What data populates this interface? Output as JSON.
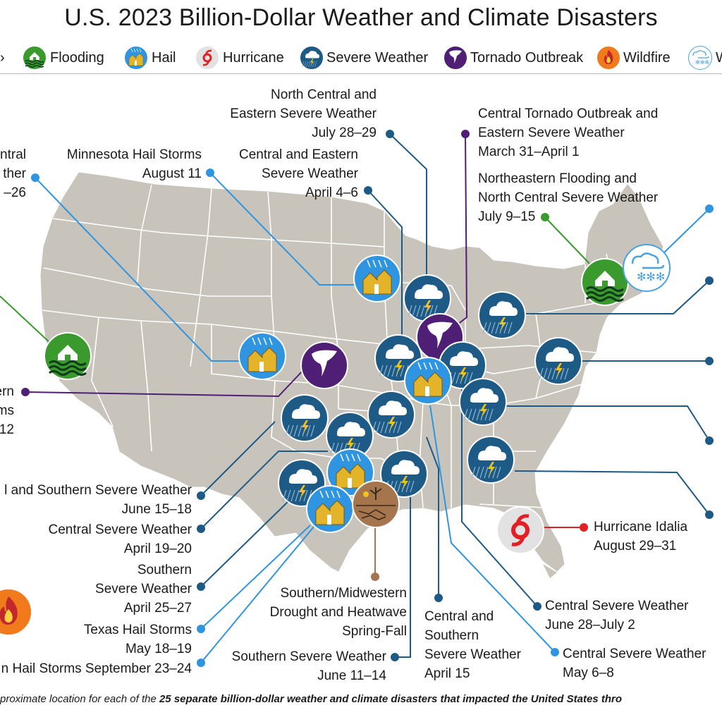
{
  "title": "U.S. 2023 Billion-Dollar Weather and Climate Disasters",
  "legend": [
    {
      "icon": "flooding-icon",
      "label": "Flooding",
      "color": "#3a9a2e"
    },
    {
      "icon": "hail-icon",
      "label": "Hail",
      "color": "#2f95e0"
    },
    {
      "icon": "hurricane-icon",
      "label": "Hurricane",
      "color": "#e0e0e0"
    },
    {
      "icon": "severe-weather-icon",
      "label": "Severe Weather",
      "color": "#1d5a86"
    },
    {
      "icon": "tornado-outbreak-icon",
      "label": "Tornado Outbreak",
      "color": "#4e1f74"
    },
    {
      "icon": "wildfire-icon",
      "label": "Wildfire",
      "color": "#f07a1c"
    },
    {
      "icon": "winter-storm-icon",
      "label": "W",
      "color": "#ffffff"
    }
  ],
  "colors": {
    "land": "#c8c4bb",
    "border": "#ffffff",
    "flooding": "#3a9a2e",
    "hail": "#2f95e0",
    "severe": "#1d5a86",
    "tornado": "#4e1f74",
    "hurricane_line": "#e31e24",
    "drought": "#a5754d"
  },
  "events": [
    {
      "type": "severe",
      "lines": [
        "North Central and",
        "Eastern Severe Weather",
        "July 28–29"
      ]
    },
    {
      "type": "tornado",
      "lines": [
        "Central Tornado Outbreak and",
        "Eastern Severe Weather",
        "March 31–April 1"
      ]
    },
    {
      "type": "hail",
      "lines": [
        "ntral",
        "ther",
        "–26"
      ]
    },
    {
      "type": "hail",
      "lines": [
        "Minnesota Hail Storms",
        "August 11"
      ]
    },
    {
      "type": "severe",
      "lines": [
        "Central and Eastern",
        "Severe Weather",
        "April 4–6"
      ]
    },
    {
      "type": "flooding",
      "lines": [
        "Northeastern Flooding and",
        "North Central Severe Weather",
        "July 9–15"
      ]
    },
    {
      "type": "tornado",
      "lines": [
        "ern",
        "ms",
        "12"
      ]
    },
    {
      "type": "severe",
      "lines": [
        "l and Southern Severe Weather",
        "June 15–18"
      ]
    },
    {
      "type": "severe",
      "lines": [
        "Central Severe Weather",
        "April 19–20"
      ]
    },
    {
      "type": "severe",
      "lines": [
        "Southern",
        "Severe Weather",
        "April 25–27"
      ]
    },
    {
      "type": "hail",
      "lines": [
        "Texas Hail Storms",
        "May 18–19"
      ]
    },
    {
      "type": "hail",
      "lines": [
        "n Hail Storms September 23–24"
      ]
    },
    {
      "type": "drought",
      "lines": [
        "Southern/Midwestern",
        "Drought and Heatwave",
        "Spring-Fall"
      ]
    },
    {
      "type": "severe",
      "lines": [
        "Southern Severe Weather",
        "June 11–14"
      ]
    },
    {
      "type": "severe",
      "lines": [
        "Central and",
        "Southern",
        "Severe Weather",
        "April 15"
      ]
    },
    {
      "type": "severe",
      "lines": [
        "Central Severe Weather",
        "June 28–July 2"
      ]
    },
    {
      "type": "hail",
      "lines": [
        "Central Severe Weather",
        "May 6–8"
      ]
    },
    {
      "type": "hurricane",
      "lines": [
        "Hurricane Idalia",
        "August 29–31"
      ]
    }
  ],
  "footnote": {
    "prefix": "proximate location for each of the ",
    "bold": "25 separate billion-dollar weather and climate disasters that impacted the United States thro"
  }
}
